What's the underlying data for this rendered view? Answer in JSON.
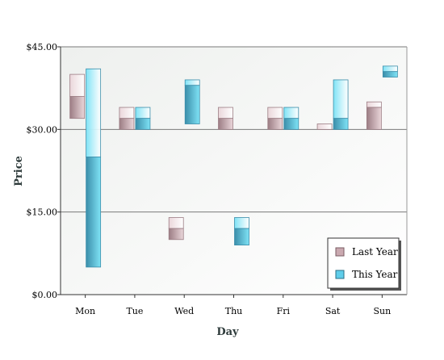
{
  "chart_data": {
    "type": "bar",
    "subtype": "floating-range",
    "title": "",
    "xlabel": "Day",
    "ylabel": "Price",
    "categories": [
      "Mon",
      "Tue",
      "Wed",
      "Thu",
      "Fri",
      "Sat",
      "Sun"
    ],
    "yticks": [
      "$0.00",
      "$15.00",
      "$30.00",
      "$45.00"
    ],
    "ylim": [
      0,
      45
    ],
    "grid": true,
    "legend_position": "bottom-right",
    "series": [
      {
        "name": "Last Year",
        "low": [
          32,
          30,
          10,
          30,
          30,
          30,
          30
        ],
        "mid": [
          36,
          32,
          12,
          32,
          32,
          30,
          34
        ],
        "high": [
          40,
          34,
          14,
          34,
          34,
          31,
          35
        ],
        "color_light": "#ead6da",
        "color_dark": "#9c7d84"
      },
      {
        "name": "This Year",
        "low": [
          5,
          30,
          31,
          9,
          30,
          30,
          39.5
        ],
        "mid": [
          25,
          32,
          38,
          12,
          32,
          32,
          40.5
        ],
        "high": [
          41,
          34,
          39,
          14,
          34,
          39,
          41.5
        ],
        "color_light": "#7fe3f6",
        "color_dark": "#3b8eaa"
      }
    ]
  }
}
